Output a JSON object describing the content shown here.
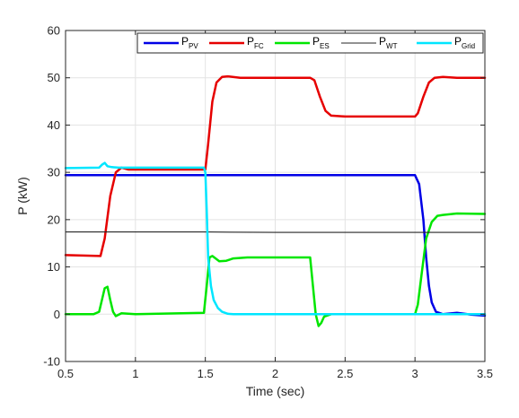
{
  "chart_data": {
    "type": "line",
    "title": "",
    "xlabel": "Time (sec)",
    "ylabel": "P (kW)",
    "xlim": [
      0.5,
      3.5
    ],
    "ylim": [
      -10,
      60
    ],
    "xticks": [
      0.5,
      1,
      1.5,
      2,
      2.5,
      3,
      3.5
    ],
    "xtick_labels": [
      "0.5",
      "1",
      "1.5",
      "2",
      "2.5",
      "3",
      "3.5"
    ],
    "yticks": [
      -10,
      0,
      10,
      20,
      30,
      40,
      50,
      60
    ],
    "ytick_labels": [
      "-10",
      "0",
      "10",
      "20",
      "30",
      "40",
      "50",
      "60"
    ],
    "grid": true,
    "legend": {
      "placement": "top-right",
      "orientation": "horizontal",
      "entries": [
        {
          "base": "P",
          "sub": "PV"
        },
        {
          "base": "P",
          "sub": "FC"
        },
        {
          "base": "P",
          "sub": "ES"
        },
        {
          "base": "P",
          "sub": "WT"
        },
        {
          "base": "P",
          "sub": "Grid"
        }
      ]
    },
    "series": [
      {
        "color": "#0000E6",
        "width": 2.5,
        "x": [
          0.5,
          3.0,
          3.03,
          3.06,
          3.08,
          3.1,
          3.12,
          3.15,
          3.2,
          3.3,
          3.4,
          3.5
        ],
        "y": [
          29.4,
          29.4,
          27.5,
          20,
          12,
          6,
          2.5,
          0.5,
          0,
          0.3,
          -0.1,
          -0.3
        ]
      },
      {
        "color": "#E60000",
        "width": 2.5,
        "x": [
          0.5,
          0.75,
          0.78,
          0.82,
          0.86,
          0.9,
          0.95,
          1.0,
          1.5,
          1.52,
          1.55,
          1.58,
          1.62,
          1.66,
          1.75,
          2.0,
          2.25,
          2.28,
          2.32,
          2.36,
          2.4,
          2.5,
          2.6,
          2.8,
          3.0,
          3.02,
          3.06,
          3.1,
          3.14,
          3.2,
          3.3,
          3.5
        ],
        "y": [
          12.5,
          12.3,
          16,
          25,
          30,
          31,
          30.6,
          30.6,
          30.6,
          36,
          45,
          49,
          50.2,
          50.3,
          50,
          50,
          50,
          49.5,
          46,
          43,
          42,
          41.8,
          41.8,
          41.8,
          41.8,
          42.5,
          46,
          49,
          50,
          50.2,
          50,
          50
        ]
      },
      {
        "color": "#00E600",
        "width": 2.5,
        "x": [
          0.5,
          0.7,
          0.74,
          0.76,
          0.78,
          0.8,
          0.82,
          0.84,
          0.86,
          0.9,
          1.0,
          1.49,
          1.51,
          1.53,
          1.55,
          1.6,
          1.65,
          1.7,
          1.8,
          2.0,
          2.25,
          2.27,
          2.29,
          2.31,
          2.33,
          2.35,
          2.4,
          2.6,
          2.8,
          3.0,
          3.02,
          3.05,
          3.08,
          3.12,
          3.16,
          3.2,
          3.3,
          3.5
        ],
        "y": [
          0,
          0,
          0.5,
          3,
          5.5,
          5.8,
          3,
          0.5,
          -0.4,
          0.2,
          0,
          0.3,
          6,
          12,
          12.3,
          11.2,
          11.3,
          11.8,
          12,
          12,
          12,
          6,
          0,
          -2.5,
          -1.8,
          -0.5,
          0,
          0,
          0,
          0,
          2,
          9,
          16,
          19.5,
          20.8,
          21,
          21.3,
          21.2
        ]
      },
      {
        "color": "#262626",
        "width": 1.1,
        "x": [
          0.5,
          1.0,
          1.5,
          2.0,
          2.5,
          3.0,
          3.5
        ],
        "y": [
          17.4,
          17.4,
          17.4,
          17.3,
          17.3,
          17.3,
          17.3
        ]
      },
      {
        "color": "#00E6FF",
        "width": 2.5,
        "x": [
          0.5,
          0.74,
          0.76,
          0.78,
          0.8,
          0.83,
          0.88,
          1.0,
          1.49,
          1.5,
          1.51,
          1.52,
          1.54,
          1.56,
          1.59,
          1.62,
          1.66,
          1.7,
          1.8,
          2.0,
          3.0,
          3.5
        ],
        "y": [
          30.9,
          31,
          31.6,
          32,
          31.3,
          31.1,
          31,
          31,
          31,
          30,
          22,
          12,
          6,
          3,
          1.3,
          0.5,
          0.1,
          0,
          0,
          0,
          0,
          0
        ]
      }
    ]
  }
}
